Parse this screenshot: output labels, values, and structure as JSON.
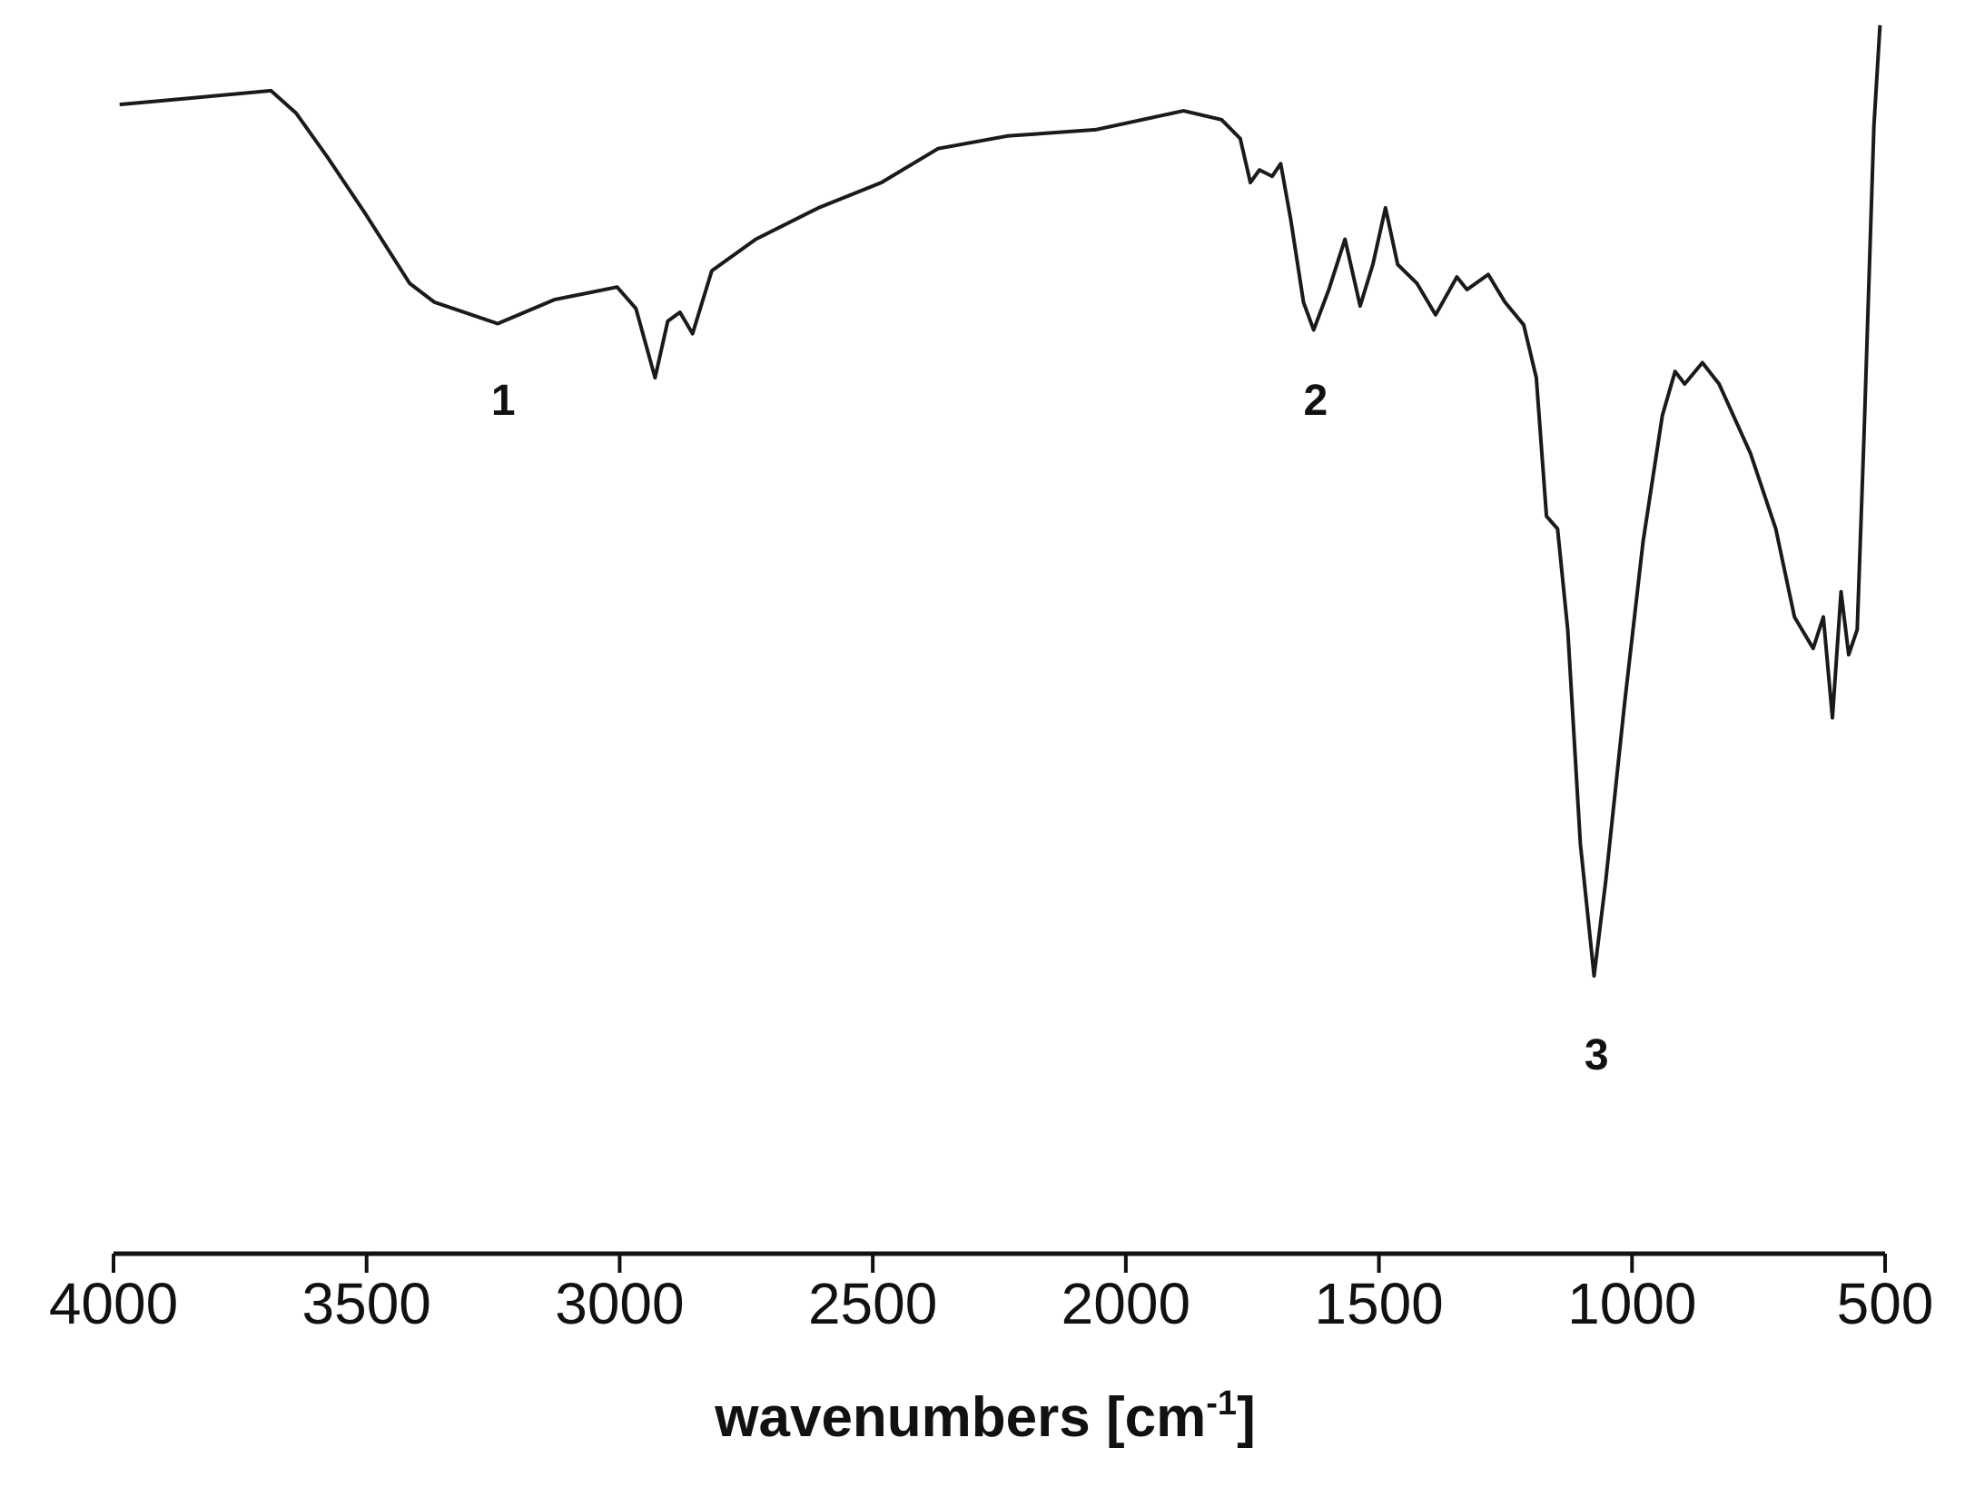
{
  "chart_data": {
    "type": "line",
    "title": "",
    "xlabel": "wavenumbers [cm",
    "xlabel_superscript": "-1",
    "xlabel_close": "]",
    "ylabel": "",
    "xlim": [
      4000,
      500
    ],
    "x_reversed": true,
    "ylim": [
      0,
      100
    ],
    "y_axis_shown": false,
    "grid": false,
    "line_color": "#1a1a1a",
    "xticks": [
      4000,
      3500,
      3000,
      2500,
      2000,
      1500,
      1000,
      500
    ],
    "xtick_labels": [
      "4000",
      "3500",
      "3000",
      "2500",
      "2000",
      "1500",
      "1000",
      "500"
    ],
    "annotations": [
      {
        "text": "1",
        "x": 3230
      },
      {
        "text": "2",
        "x": 1625
      },
      {
        "text": "3",
        "x": 1070
      }
    ],
    "series": [
      {
        "x": [
          3988,
          3851,
          3689,
          3639,
          3577,
          3502,
          3415,
          3366,
          3241,
          3129,
          3005,
          2968,
          2930,
          2905,
          2881,
          2856,
          2818,
          2731,
          2607,
          2483,
          2371,
          2234,
          2060,
          1886,
          1811,
          1774,
          1754,
          1736,
          1711,
          1694,
          1674,
          1649,
          1629,
          1599,
          1567,
          1537,
          1512,
          1487,
          1463,
          1425,
          1388,
          1346,
          1326,
          1284,
          1251,
          1214,
          1189,
          1169,
          1147,
          1127,
          1102,
          1075,
          1052,
          1015,
          978,
          940,
          915,
          896,
          861,
          828,
          766,
          716,
          679,
          642,
          622,
          604,
          587,
          572,
          555,
          542,
          522,
          510
        ],
        "y": [
          91.7,
          92.2,
          92.8,
          91,
          87.5,
          83,
          77.5,
          76,
          74.3,
          76.2,
          77.2,
          75.5,
          70,
          74.5,
          75.2,
          73.5,
          78.5,
          81,
          83.5,
          85.5,
          88.2,
          89.2,
          89.7,
          91.2,
          90.5,
          89,
          85.5,
          86.5,
          86,
          87,
          82.5,
          76,
          73.8,
          77,
          81,
          75.7,
          79,
          83.5,
          79,
          77.5,
          75,
          78,
          77,
          78.2,
          76,
          74.2,
          70,
          59,
          58,
          50,
          33,
          22.5,
          30,
          44,
          57,
          67,
          70.5,
          69.5,
          71.2,
          69.5,
          64,
          58,
          51,
          48.5,
          51,
          43,
          53,
          48,
          50,
          65,
          90,
          98
        ]
      }
    ]
  }
}
